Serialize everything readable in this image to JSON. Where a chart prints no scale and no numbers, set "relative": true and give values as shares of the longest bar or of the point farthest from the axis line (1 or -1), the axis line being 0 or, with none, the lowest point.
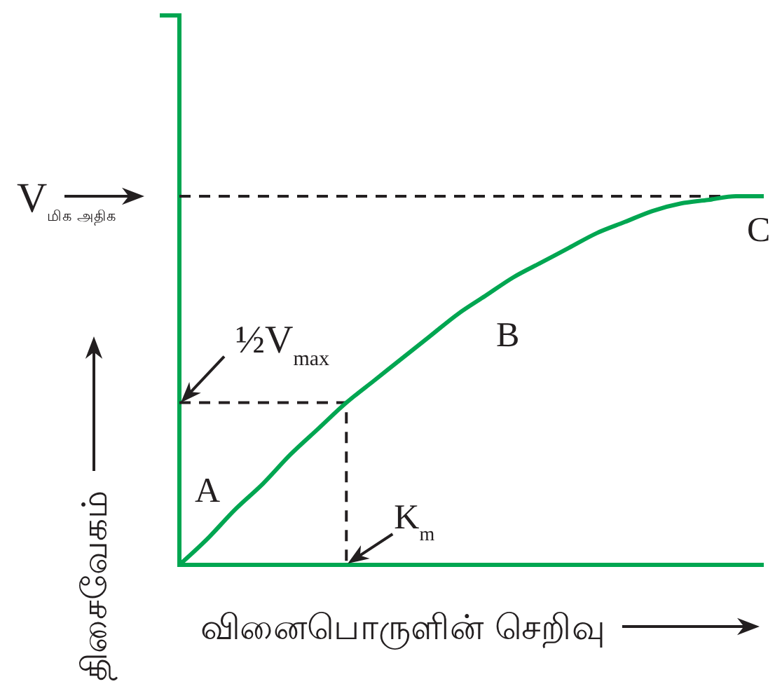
{
  "chart_data": {
    "type": "line",
    "xlabel": "வினைபொருளின் செறிவு",
    "ylabel": "திசைவேகம்",
    "relative": true,
    "categories": [
      null,
      null,
      null,
      null,
      null,
      null,
      null,
      null,
      null,
      null,
      null,
      null,
      null,
      null,
      null,
      null,
      null,
      null,
      null,
      null,
      null,
      null
    ],
    "series": [
      {
        "color": "#00a651",
        "values": [
          0,
          0.07,
          0.15,
          0.22,
          0.3,
          0.37,
          0.44,
          0.5,
          0.56,
          0.62,
          0.68,
          0.73,
          0.78,
          0.82,
          0.86,
          0.9,
          0.93,
          0.96,
          0.98,
          0.99,
          1,
          1
        ]
      }
    ],
    "ref_lines": [
      {
        "axis": "y",
        "value": 1,
        "label": "V$_{மிக அதிக}$",
        "line_style": "dashed",
        "color": "#231f20"
      },
      {
        "axis": "y",
        "value": 0.44,
        "label": "½V$_{max}$",
        "line_style": "dashed",
        "color": "#231f20"
      }
    ],
    "annotations": [
      "A",
      "B",
      "C",
      "K$_{m}$"
    ]
  }
}
